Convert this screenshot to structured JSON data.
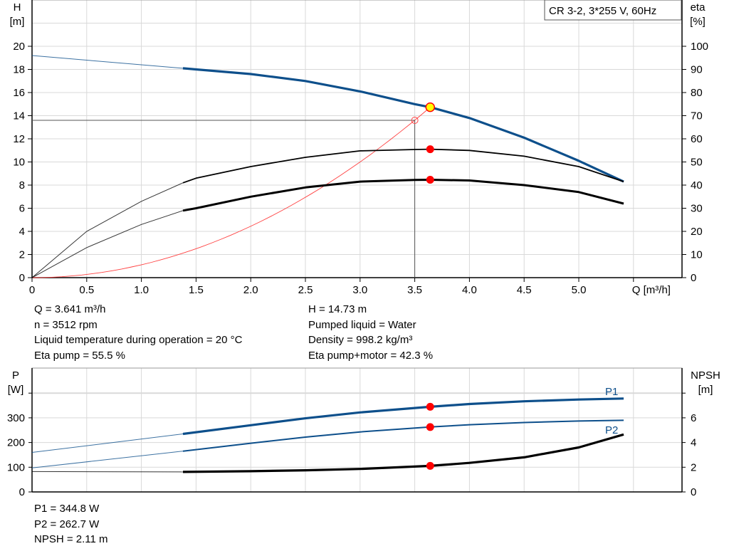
{
  "title": "CR 3-2, 3*255 V, 60Hz",
  "info_top_left": [
    "Q = 3.641 m³/h",
    "n = 3512 rpm",
    "Liquid temperature during operation = 20 °C",
    "Eta pump = 55.5 %"
  ],
  "info_top_right": [
    "H = 14.73 m",
    "Pumped liquid = Water",
    "Density = 998.2 kg/m³",
    "Eta pump+motor = 42.3 %"
  ],
  "info_bottom": [
    "P1 = 344.8 W",
    "P2 = 262.7 W",
    "NPSH = 2.11 m"
  ],
  "colors": {
    "head": "#0d4f8b",
    "eta": "#000000",
    "system": "#ff4040",
    "duty_point": "#ffff00",
    "marker": "#ff0000",
    "grid": "#d9d9d9"
  },
  "chart_data": [
    {
      "type": "line",
      "title": "CR 3-2, 3*255 V, 60Hz",
      "xlabel": "Q [m³/h]",
      "ylabel_left": [
        "H",
        "[m]"
      ],
      "ylabel_right": [
        "eta",
        "[%]"
      ],
      "xlim": [
        0,
        5.9
      ],
      "ylim_left": [
        0,
        24
      ],
      "ylim_right": [
        0,
        120
      ],
      "grid": true,
      "xticks": [
        "0",
        "0.5",
        "1.0",
        "1.5",
        "2.0",
        "2.5",
        "3.0",
        "3.5",
        "4.0",
        "4.5",
        "5.0"
      ],
      "yticks_left": [
        "0",
        "2",
        "4",
        "6",
        "8",
        "10",
        "12",
        "14",
        "16",
        "18",
        "20"
      ],
      "yticks_right": [
        "0",
        "10",
        "20",
        "30",
        "40",
        "50",
        "60",
        "70",
        "80",
        "90",
        "100"
      ],
      "series": [
        {
          "key": "H",
          "axis": "left",
          "color": "#0d4f8b",
          "x": [
            0,
            0.5,
            1.0,
            1.38,
            1.5,
            2.0,
            2.5,
            3.0,
            3.5,
            3.641,
            4.0,
            4.5,
            5.0,
            5.41
          ],
          "y": [
            19.2,
            18.8,
            18.4,
            18.1,
            18.0,
            17.6,
            17.0,
            16.1,
            15.0,
            14.73,
            13.8,
            12.1,
            10.1,
            8.3
          ],
          "thick_from": 1.38
        },
        {
          "key": "eta_pump",
          "axis": "right",
          "color": "#000000",
          "x": [
            0,
            0.5,
            1.0,
            1.38,
            1.5,
            2.0,
            2.5,
            3.0,
            3.5,
            3.641,
            4.0,
            4.5,
            5.0,
            5.41
          ],
          "y": [
            0,
            20,
            33,
            41,
            43,
            48,
            52,
            54.8,
            55.4,
            55.5,
            55,
            52.5,
            48,
            41.5
          ],
          "thick_from": 1.38,
          "width": 1.8
        },
        {
          "key": "eta_pump_motor",
          "axis": "right",
          "color": "#000000",
          "x": [
            0,
            0.5,
            1.0,
            1.38,
            1.5,
            2.0,
            2.5,
            3.0,
            3.5,
            3.641,
            4.0,
            4.5,
            5.0,
            5.41
          ],
          "y": [
            0,
            13,
            23,
            29,
            30,
            35,
            39,
            41.5,
            42.2,
            42.3,
            42,
            40,
            37,
            32
          ],
          "thick_from": 1.38,
          "width": 3
        }
      ],
      "system_curve": {
        "x_max": 3.641,
        "h_at_max": 14.73
      },
      "duty_point": {
        "Q": 3.641,
        "H": 14.73,
        "eta_pump": 55.5,
        "eta_pump_motor": 42.3
      },
      "reference_point": {
        "Q": 3.5,
        "H": 13.6
      }
    },
    {
      "type": "line",
      "ylabel_left": [
        "P",
        "[W]"
      ],
      "ylabel_right": [
        "NPSH",
        "[m]"
      ],
      "xlim": [
        0,
        5.9
      ],
      "ylim_left": [
        0,
        500
      ],
      "ylim_right": [
        0,
        10
      ],
      "grid": true,
      "yticks_left": [
        "0",
        "100",
        "200",
        "300"
      ],
      "yticks_right": [
        "0",
        "2",
        "4",
        "6"
      ],
      "series": [
        {
          "name": "P1",
          "axis": "left",
          "color": "#0d4f8b",
          "x": [
            0,
            1.38,
            2.0,
            2.5,
            3.0,
            3.641,
            4.0,
            4.5,
            5.0,
            5.41
          ],
          "y": [
            160,
            235,
            270,
            298,
            322,
            344.8,
            356,
            367,
            374,
            378
          ],
          "thick_from": 1.38,
          "width": 3.2
        },
        {
          "name": "P2",
          "axis": "left",
          "color": "#0d4f8b",
          "x": [
            0,
            1.38,
            2.0,
            2.5,
            3.0,
            3.641,
            4.0,
            4.5,
            5.0,
            5.41
          ],
          "y": [
            97,
            165,
            197,
            222,
            243,
            262.7,
            272,
            281,
            287,
            290
          ],
          "thick_from": 1.38,
          "width": 2
        },
        {
          "key": "NPSH",
          "axis": "right",
          "color": "#000000",
          "x": [
            0,
            1.38,
            2.0,
            2.5,
            3.0,
            3.641,
            4.0,
            4.5,
            5.0,
            5.41
          ],
          "y": [
            1.65,
            1.62,
            1.68,
            1.75,
            1.86,
            2.11,
            2.35,
            2.8,
            3.6,
            4.65
          ],
          "thick_from": 1.38,
          "width": 3.2
        }
      ],
      "markers": {
        "Q": 3.641,
        "P1": 344.8,
        "P2": 262.7,
        "NPSH": 2.11
      }
    }
  ]
}
